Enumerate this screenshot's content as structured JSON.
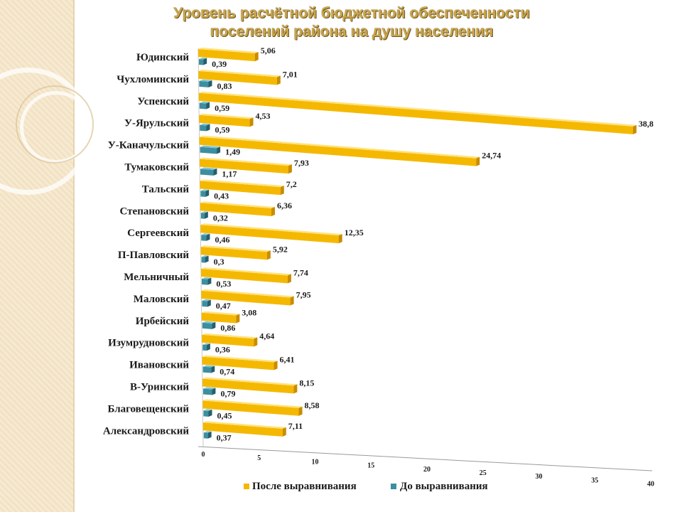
{
  "slide": {
    "title_line1": "Уровень расчётной бюджетной обеспеченности",
    "title_line2": "поселений района на душу населения"
  },
  "colors": {
    "after": "#f5b800",
    "after_dark": "#c98c00",
    "after_top": "#ffe27a",
    "before": "#3c8ea0",
    "before_dark": "#245e6c",
    "before_top": "#7cc4d2"
  },
  "chart_data": {
    "type": "bar",
    "orientation": "horizontal",
    "title": "Уровень расчётной бюджетной обеспеченности поселений района на душу населения",
    "categories": [
      "Юдинский",
      "Чухломинский",
      "Успенский",
      "У-Ярульский",
      "У-Каначульский",
      "Тумаковский",
      "Тальский",
      "Степановский",
      "Сергеевский",
      "П-Павловский",
      "Мельничный",
      "Маловский",
      "Ирбейский",
      "Изумрудновский",
      "Ивановский",
      "В-Уринский",
      "Благовещенский",
      "Александровский"
    ],
    "series": [
      {
        "name": "После выравнивания",
        "labels": [
          "5,06",
          "7,01",
          "38,8",
          "4,53",
          "24,74",
          "7,93",
          "7,2",
          "6,36",
          "12,35",
          "5,92",
          "7,74",
          "7,95",
          "3,08",
          "4,64",
          "6,41",
          "8,15",
          "8,58",
          "7,11"
        ],
        "values": [
          5.06,
          7.01,
          38.8,
          4.53,
          24.74,
          7.93,
          7.2,
          6.36,
          12.35,
          5.92,
          7.74,
          7.95,
          3.08,
          4.64,
          6.41,
          8.15,
          8.58,
          7.11
        ]
      },
      {
        "name": "До выравнивания",
        "labels": [
          "0,39",
          "0,83",
          "0,59",
          "0,59",
          "1,49",
          "1,17",
          "0,43",
          "0,32",
          "0,46",
          "0,3",
          "0,53",
          "0,47",
          "0,86",
          "0,36",
          "0,74",
          "0,79",
          "0,45",
          "0,37"
        ],
        "values": [
          0.39,
          0.83,
          0.59,
          0.59,
          1.49,
          1.17,
          0.43,
          0.32,
          0.46,
          0.3,
          0.53,
          0.47,
          0.86,
          0.36,
          0.74,
          0.79,
          0.45,
          0.37
        ]
      }
    ],
    "xlim": [
      0,
      40
    ],
    "xticks": [
      "0",
      "5",
      "10",
      "15",
      "20",
      "25",
      "30",
      "35",
      "40"
    ],
    "xtick_values": [
      0,
      5,
      10,
      15,
      20,
      25,
      30,
      35,
      40
    ],
    "legend": {
      "position": "bottom",
      "entries": [
        "После выравнивания",
        "До выравнивания"
      ]
    },
    "gridlines": false
  }
}
